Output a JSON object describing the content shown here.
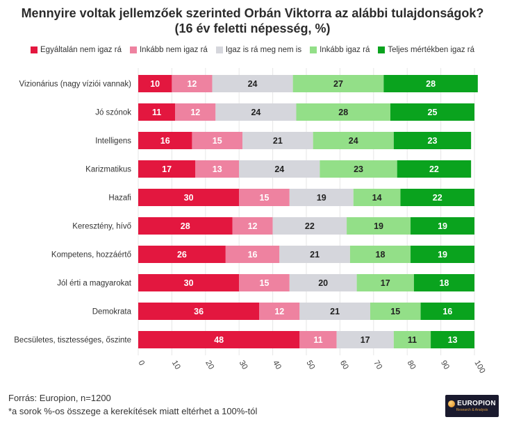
{
  "chart_data": {
    "type": "bar",
    "orientation": "horizontal",
    "stacked": true,
    "title": "Mennyire voltak jellemzőek szerinted Orbán Viktorra az alábbi tulajdonságok?",
    "subtitle": "(16 év feletti népesség, %)",
    "categories": [
      "Vizionárius (nagy víziói vannak)",
      "Jó szónok",
      "Intelligens",
      "Karizmatikus",
      "Hazafi",
      "Keresztény, hívő",
      "Kompetens, hozzáértő",
      "Jól érti a magyarokat",
      "Demokrata",
      "Becsületes, tisztességes, őszinte"
    ],
    "series": [
      {
        "name": "Egyáltalán nem igaz rá",
        "color": "#e3173f",
        "label_color": "#ffffff",
        "values": [
          10,
          11,
          16,
          17,
          30,
          28,
          26,
          30,
          36,
          48
        ]
      },
      {
        "name": "Inkább nem igaz rá",
        "color": "#ee82a0",
        "label_color": "#ffffff",
        "values": [
          12,
          12,
          15,
          13,
          15,
          12,
          16,
          15,
          12,
          11
        ]
      },
      {
        "name": "Igaz is rá meg nem is",
        "color": "#d5d6dc",
        "label_color": "#222222",
        "values": [
          24,
          24,
          21,
          24,
          19,
          22,
          21,
          20,
          21,
          17
        ]
      },
      {
        "name": "Inkább igaz rá",
        "color": "#93df88",
        "label_color": "#222222",
        "values": [
          27,
          28,
          24,
          23,
          14,
          19,
          18,
          17,
          15,
          11
        ]
      },
      {
        "name": "Teljes mértékben igaz rá",
        "color": "#0aa31e",
        "label_color": "#ffffff",
        "values": [
          28,
          25,
          23,
          22,
          22,
          19,
          19,
          18,
          16,
          13
        ]
      }
    ],
    "xlim": [
      0,
      100
    ],
    "xticks": [
      0,
      10,
      20,
      30,
      40,
      50,
      60,
      70,
      80,
      90,
      100
    ],
    "grid": true,
    "legend_position": "top"
  },
  "footer": {
    "source": "Forrás: Europion, n=1200",
    "note": "*a sorok %-os összege a kerekítések miatt eltérhet a 100%-tól"
  },
  "logo": {
    "name": "EUROPION",
    "tagline": "Research & Analysis"
  }
}
